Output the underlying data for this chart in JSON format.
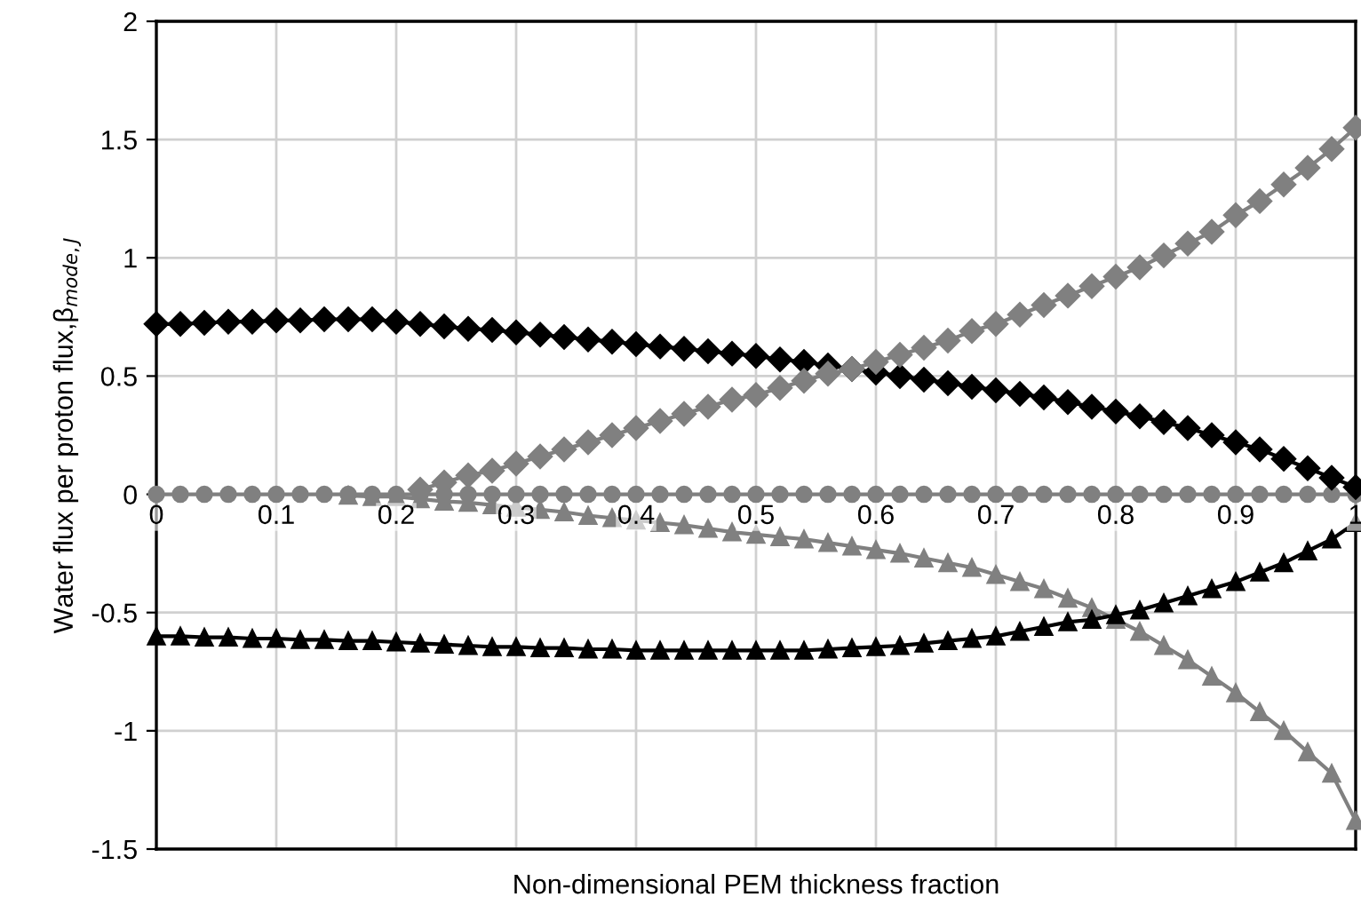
{
  "chart_data": {
    "type": "line",
    "xlabel": "Non-dimensional PEM thickness fraction",
    "ylabel": "Water flux per proton flux,β$_{mode,J}$",
    "x": [
      0,
      0.02,
      0.04,
      0.06,
      0.08,
      0.1,
      0.12,
      0.14,
      0.16,
      0.18,
      0.2,
      0.22,
      0.24,
      0.26,
      0.28,
      0.3,
      0.32,
      0.34,
      0.36,
      0.38,
      0.4,
      0.42,
      0.44,
      0.46,
      0.48,
      0.5,
      0.52,
      0.54,
      0.56,
      0.58,
      0.6,
      0.62,
      0.64,
      0.66,
      0.68,
      0.7,
      0.72,
      0.74,
      0.76,
      0.78,
      0.8,
      0.82,
      0.84,
      0.86,
      0.88,
      0.9,
      0.92,
      0.94,
      0.96,
      0.98,
      1
    ],
    "xlim": [
      0,
      1
    ],
    "xticks": [
      0,
      0.1,
      0.2,
      0.3,
      0.4,
      0.5,
      0.6,
      0.7,
      0.8,
      0.9,
      1
    ],
    "ylim": [
      -1.5,
      2
    ],
    "yticks": [
      -1.5,
      -1,
      -0.5,
      0,
      0.5,
      1,
      1.5,
      2
    ],
    "grid": true,
    "legend": false,
    "series": [
      {
        "color": "#808080",
        "marker": "circle",
        "values": [
          0,
          0,
          0,
          0,
          0,
          0,
          0,
          0,
          0,
          0,
          0,
          0,
          0,
          0,
          0,
          0,
          0,
          0,
          0,
          0,
          0,
          0,
          0,
          0,
          0,
          0,
          0,
          0,
          0,
          0,
          0,
          0,
          0,
          0,
          0,
          0,
          0,
          0,
          0,
          0,
          0,
          0,
          0,
          0,
          0,
          0,
          0,
          0,
          0,
          0,
          0
        ]
      },
      {
        "color": "#000000",
        "marker": "diamond",
        "values": [
          0.72,
          0.72,
          0.725,
          0.73,
          0.73,
          0.735,
          0.735,
          0.74,
          0.74,
          0.74,
          0.73,
          0.72,
          0.71,
          0.7,
          0.695,
          0.685,
          0.675,
          0.665,
          0.655,
          0.645,
          0.635,
          0.625,
          0.615,
          0.605,
          0.595,
          0.585,
          0.57,
          0.56,
          0.545,
          0.53,
          0.515,
          0.5,
          0.485,
          0.47,
          0.455,
          0.44,
          0.425,
          0.41,
          0.39,
          0.37,
          0.35,
          0.33,
          0.305,
          0.28,
          0.25,
          0.22,
          0.19,
          0.15,
          0.11,
          0.07,
          0.03
        ]
      },
      {
        "color": "#808080",
        "marker": "diamond",
        "values": [
          null,
          null,
          null,
          null,
          null,
          null,
          null,
          null,
          null,
          null,
          null,
          0.02,
          0.05,
          0.08,
          0.1,
          0.13,
          0.16,
          0.19,
          0.22,
          0.25,
          0.28,
          0.31,
          0.34,
          0.37,
          0.4,
          0.42,
          0.45,
          0.48,
          0.51,
          0.53,
          0.56,
          0.59,
          0.62,
          0.65,
          0.69,
          0.72,
          0.76,
          0.8,
          0.84,
          0.88,
          0.92,
          0.96,
          1.01,
          1.06,
          1.11,
          1.18,
          1.24,
          1.31,
          1.38,
          1.46,
          1.55
        ]
      },
      {
        "color": "#808080",
        "marker": "triangle",
        "values": [
          null,
          null,
          null,
          null,
          null,
          null,
          null,
          null,
          -0.005,
          -0.01,
          -0.01,
          -0.02,
          -0.03,
          -0.035,
          -0.045,
          -0.055,
          -0.065,
          -0.075,
          -0.09,
          -0.1,
          -0.11,
          -0.12,
          -0.13,
          -0.145,
          -0.16,
          -0.17,
          -0.18,
          -0.19,
          -0.205,
          -0.22,
          -0.235,
          -0.25,
          -0.27,
          -0.29,
          -0.31,
          -0.34,
          -0.37,
          -0.4,
          -0.44,
          -0.48,
          -0.53,
          -0.58,
          -0.64,
          -0.7,
          -0.77,
          -0.84,
          -0.92,
          -1.0,
          -1.09,
          -1.18,
          -1.38
        ]
      },
      {
        "color": "#000000",
        "marker": "triangle",
        "values": [
          -0.6,
          -0.6,
          -0.605,
          -0.605,
          -0.61,
          -0.61,
          -0.615,
          -0.615,
          -0.62,
          -0.62,
          -0.625,
          -0.63,
          -0.635,
          -0.64,
          -0.645,
          -0.645,
          -0.65,
          -0.65,
          -0.655,
          -0.655,
          -0.66,
          -0.66,
          -0.66,
          -0.66,
          -0.66,
          -0.66,
          -0.66,
          -0.66,
          -0.655,
          -0.65,
          -0.645,
          -0.64,
          -0.63,
          -0.62,
          -0.61,
          -0.6,
          -0.58,
          -0.56,
          -0.54,
          -0.53,
          -0.51,
          -0.49,
          -0.46,
          -0.43,
          -0.4,
          -0.37,
          -0.33,
          -0.29,
          -0.24,
          -0.19,
          -0.12
        ]
      }
    ]
  }
}
